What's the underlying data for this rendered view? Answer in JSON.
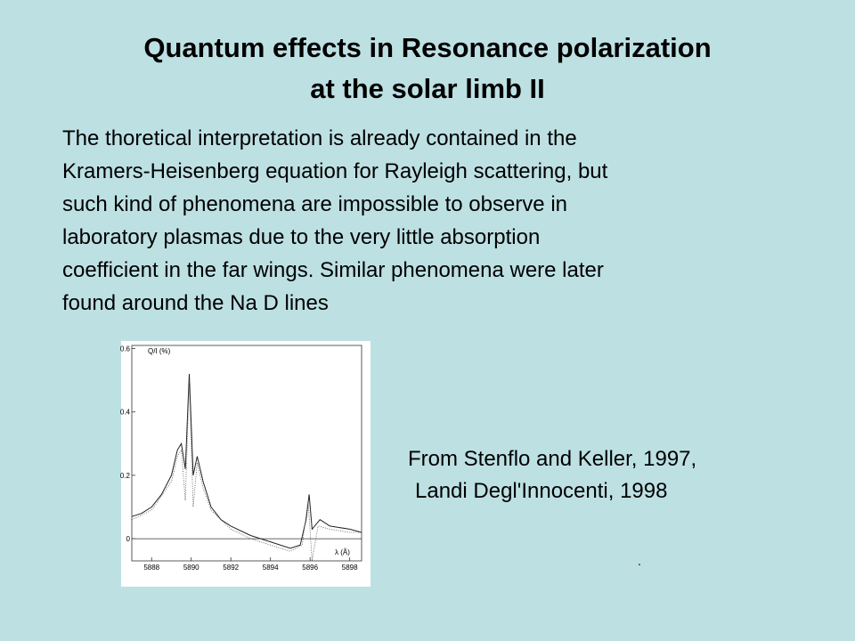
{
  "title": {
    "lines": [
      "Quantum effects in Resonance polarization",
      "at the solar limb II"
    ]
  },
  "body": {
    "lines": [
      "The thoretical interpretation is already contained in the",
      "Kramers-Heisenberg equation for Rayleigh scattering, but",
      "such kind of phenomena are impossible to observe in",
      "laboratory plasmas due to the very little absorption",
      "coefficient in the far wings. Similar phenomena were later",
      "found around the Na D lines"
    ]
  },
  "caption": {
    "lines": [
      "From Stenflo and Keller, 1997,",
      "Landi Degl'Innocenti, 1998"
    ]
  },
  "footnote": ".",
  "chart_data": {
    "type": "line",
    "ylabel": "Q/I (%)",
    "xlabel": "λ (Å)",
    "xlim": [
      5887,
      5898.6
    ],
    "ylim": [
      -0.07,
      0.61
    ],
    "xticks": [
      5888,
      5890,
      5892,
      5894,
      5896,
      5898
    ],
    "yticks": [
      0,
      0.2,
      0.4,
      0.6
    ],
    "series": [
      {
        "style": "solid",
        "color": "#222222",
        "x": [
          5887,
          5887.5,
          5888,
          5888.5,
          5889,
          5889.3,
          5889.5,
          5889.7,
          5889.9,
          5890.1,
          5890.3,
          5890.6,
          5891,
          5891.5,
          5892,
          5893,
          5894,
          5895,
          5895.5,
          5895.8,
          5895.95,
          5896.1,
          5896.5,
          5897,
          5898,
          5898.6
        ],
        "values": [
          0.07,
          0.08,
          0.1,
          0.14,
          0.2,
          0.28,
          0.3,
          0.22,
          0.52,
          0.2,
          0.26,
          0.18,
          0.1,
          0.06,
          0.04,
          0.01,
          -0.01,
          -0.03,
          -0.02,
          0.06,
          0.14,
          0.03,
          0.06,
          0.04,
          0.03,
          0.02
        ]
      },
      {
        "style": "dotted",
        "color": "#555555",
        "x": [
          5887,
          5888,
          5889,
          5889.3,
          5889.5,
          5889.7,
          5889.9,
          5890.1,
          5890.3,
          5890.6,
          5891,
          5892,
          5893,
          5894,
          5895,
          5895.6,
          5895.9,
          5896.1,
          5896.4,
          5897,
          5898,
          5898.6
        ],
        "values": [
          0.06,
          0.09,
          0.18,
          0.26,
          0.28,
          0.12,
          0.5,
          0.1,
          0.24,
          0.16,
          0.09,
          0.03,
          0.0,
          -0.02,
          -0.04,
          -0.02,
          0.12,
          -0.07,
          0.04,
          0.03,
          0.02,
          0.02
        ]
      }
    ]
  }
}
